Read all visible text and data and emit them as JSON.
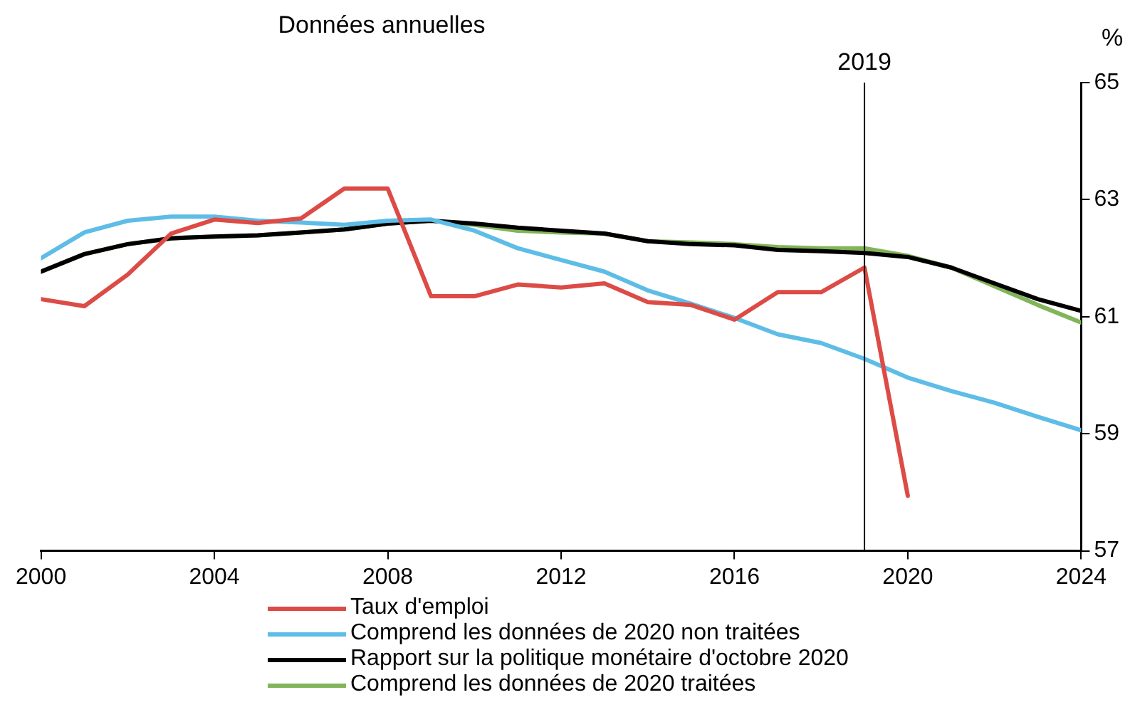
{
  "chart_data": {
    "type": "line",
    "subtitle": "Données annuelles",
    "ylabel": "%",
    "x": [
      2000,
      2001,
      2002,
      2003,
      2004,
      2005,
      2006,
      2007,
      2008,
      2009,
      2010,
      2011,
      2012,
      2013,
      2014,
      2015,
      2016,
      2017,
      2018,
      2019,
      2020,
      2021,
      2022,
      2023,
      2024
    ],
    "series": [
      {
        "name": "Taux d'emploi",
        "color": "#dc4b46",
        "values": [
          61.3,
          61.18,
          61.72,
          62.42,
          62.66,
          62.6,
          62.68,
          63.19,
          63.19,
          61.35,
          61.35,
          61.55,
          61.5,
          61.57,
          61.25,
          61.2,
          60.95,
          61.42,
          61.42,
          61.84,
          57.94,
          null,
          null,
          null,
          null
        ]
      },
      {
        "name": "Comprend les données de 2020 non traitées",
        "color": "#5ebde6",
        "values": [
          62.0,
          62.44,
          62.64,
          62.71,
          62.71,
          62.64,
          62.61,
          62.57,
          62.64,
          62.66,
          62.47,
          62.17,
          61.97,
          61.77,
          61.45,
          61.22,
          60.98,
          60.7,
          60.55,
          60.28,
          59.96,
          59.73,
          59.53,
          59.29,
          59.06
        ]
      },
      {
        "name": "Rapport sur la politique monétaire d'octobre 2020",
        "color": "#000000",
        "values": [
          61.77,
          62.07,
          62.24,
          62.34,
          62.37,
          62.39,
          62.44,
          62.49,
          62.59,
          62.64,
          62.59,
          62.52,
          62.47,
          62.42,
          62.29,
          62.24,
          62.22,
          62.14,
          62.12,
          62.09,
          62.02,
          61.84,
          61.57,
          61.3,
          61.1
        ]
      },
      {
        "name": "Comprend les données de 2020 traitées",
        "color": "#82b45a",
        "values": [
          61.77,
          62.07,
          62.24,
          62.34,
          62.37,
          62.39,
          62.44,
          62.49,
          62.59,
          62.64,
          62.57,
          62.47,
          62.44,
          62.42,
          62.29,
          62.27,
          62.24,
          62.19,
          62.17,
          62.17,
          62.04,
          61.84,
          61.52,
          61.2,
          60.9
        ]
      }
    ],
    "xlim": [
      2000,
      2024
    ],
    "xticks": [
      2000,
      2004,
      2008,
      2012,
      2016,
      2020,
      2024
    ],
    "ylim": [
      57,
      65
    ],
    "yticks": [
      57,
      59,
      61,
      63,
      65
    ],
    "ref_lines": [
      {
        "axis": "x",
        "value": 2019,
        "label": "2019",
        "color": "#000000"
      }
    ],
    "grid": false,
    "legend": "bottom",
    "marker": "none",
    "line_style": "solid"
  }
}
